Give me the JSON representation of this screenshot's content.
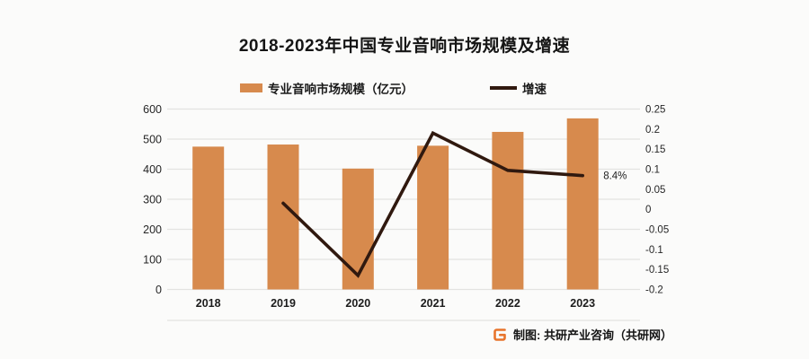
{
  "title": "2018-2023年中国专业音响市场规模及增速",
  "legend": {
    "bar_label": "专业音响市场规模（亿元）",
    "line_label": "增速"
  },
  "chart_data": {
    "type": "bar+line combo",
    "title": "2018-2023年中国专业音响市场规模及增速",
    "categories": [
      "2018",
      "2019",
      "2020",
      "2021",
      "2022",
      "2023"
    ],
    "series": [
      {
        "name": "专业音响市场规模（亿元）",
        "type": "bar",
        "axis": "left",
        "color": "#d78a4d",
        "values": [
          475,
          482,
          402,
          478,
          524,
          569
        ]
      },
      {
        "name": "增速",
        "type": "line",
        "axis": "right",
        "color": "#30190f",
        "values": [
          null,
          0.015,
          -0.165,
          0.19,
          0.097,
          0.084
        ]
      }
    ],
    "left_axis": {
      "min": 0,
      "max": 600,
      "step": 100,
      "ticks": [
        "0",
        "100",
        "200",
        "300",
        "400",
        "500",
        "600"
      ]
    },
    "right_axis": {
      "min": -0.2,
      "max": 0.25,
      "step": 0.05,
      "ticks": [
        "0.25",
        "0.2",
        "0.15",
        "0.1",
        "0.05",
        "0",
        "-0.05",
        "-0.1",
        "-0.15",
        "-0.2"
      ]
    },
    "annotation": {
      "text": "8.4%",
      "category": "2023",
      "series": "增速"
    },
    "grid": true,
    "legend_position": "top",
    "grid_color": "#e3e3e1",
    "axis_text_color": "#262626"
  },
  "footer": {
    "text": "制图: 共研产业咨询（共研网）",
    "logo_color": "#e8742c"
  }
}
